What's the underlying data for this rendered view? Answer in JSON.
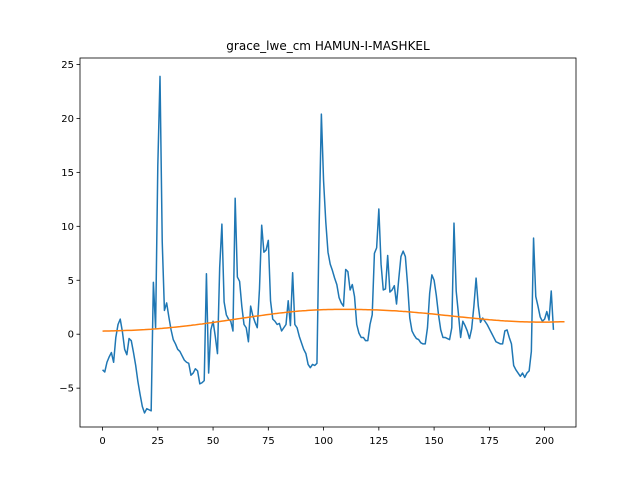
{
  "chart_data": {
    "type": "line",
    "title": "grace_lwe_cm HAMUN-I-MASHKEL",
    "xlabel": "",
    "ylabel": "",
    "xlim": [
      -10.2,
      214.2
    ],
    "ylim": [
      -8.6,
      25.6
    ],
    "x_ticks": [
      0,
      25,
      50,
      75,
      100,
      125,
      150,
      175,
      200
    ],
    "y_ticks": [
      -5,
      0,
      5,
      10,
      15,
      20,
      25
    ],
    "grid": false,
    "legend": "none",
    "series": [
      {
        "color": "#1f77b4",
        "values": [
          -3.3,
          -3.5,
          -2.6,
          -2.1,
          -1.7,
          -2.6,
          -0.3,
          0.9,
          1.4,
          0.2,
          -1.4,
          -1.9,
          -0.4,
          -0.6,
          -1.7,
          -2.9,
          -4.4,
          -5.6,
          -6.7,
          -7.3,
          -6.9,
          -7.0,
          -7.1,
          4.8,
          0.6,
          15.6,
          23.9,
          8.6,
          2.2,
          2.9,
          1.6,
          0.4,
          -0.5,
          -0.9,
          -1.4,
          -1.6,
          -2.0,
          -2.4,
          -2.6,
          -2.7,
          -3.8,
          -3.6,
          -3.2,
          -3.4,
          -4.6,
          -4.5,
          -4.3,
          5.6,
          -3.6,
          0.4,
          1.2,
          -0.2,
          -1.8,
          6.2,
          10.2,
          3.0,
          1.8,
          1.4,
          1.2,
          0.3,
          12.6,
          5.3,
          4.9,
          2.6,
          0.9,
          0.6,
          -0.7,
          2.6,
          1.7,
          1.1,
          0.6,
          4.2,
          10.1,
          7.6,
          7.8,
          8.7,
          3.1,
          1.4,
          1.2,
          0.9,
          1.0,
          0.3,
          0.6,
          0.9,
          3.1,
          0.8,
          5.7,
          0.9,
          0.6,
          -0.2,
          -0.8,
          -1.4,
          -1.8,
          -2.8,
          -3.1,
          -2.8,
          -2.9,
          -2.7,
          10.1,
          20.4,
          14.2,
          10.4,
          7.6,
          6.5,
          5.9,
          5.2,
          4.6,
          3.4,
          2.9,
          2.6,
          6.0,
          5.8,
          4.1,
          4.6,
          3.5,
          0.9,
          0.1,
          -0.3,
          -0.3,
          -0.6,
          -0.6,
          0.9,
          1.8,
          7.5,
          8.0,
          11.6,
          6.5,
          4.1,
          4.2,
          7.3,
          3.9,
          4.1,
          4.5,
          2.8,
          5.1,
          7.2,
          7.7,
          7.2,
          4.6,
          1.5,
          0.3,
          -0.1,
          -0.4,
          -0.5,
          -0.8,
          -0.9,
          -0.9,
          0.6,
          3.8,
          5.5,
          5.0,
          3.6,
          1.8,
          0.4,
          -0.3,
          -0.3,
          -0.4,
          -0.5,
          0.6,
          10.3,
          4.0,
          1.9,
          -0.3,
          1.2,
          0.8,
          0.3,
          -0.4,
          0.5,
          2.6,
          5.2,
          2.6,
          1.1,
          1.5,
          1.2,
          0.9,
          0.5,
          0.1,
          -0.3,
          -0.7,
          -0.8,
          -0.9,
          -0.9,
          0.3,
          0.4,
          -0.3,
          -0.9,
          -2.9,
          -3.3,
          -3.6,
          -3.9,
          -3.6,
          -4.0,
          -3.6,
          -3.4,
          -1.6,
          8.9,
          3.5,
          2.6,
          1.6,
          1.2,
          1.4,
          2.1,
          1.3,
          4.0,
          0.4
        ]
      },
      {
        "color": "#ff7f0e",
        "values": [
          0.29,
          0.3,
          0.3,
          0.3,
          0.31,
          0.31,
          0.32,
          0.32,
          0.33,
          0.33,
          0.34,
          0.35,
          0.35,
          0.36,
          0.37,
          0.38,
          0.39,
          0.4,
          0.41,
          0.42,
          0.44,
          0.45,
          0.46,
          0.48,
          0.49,
          0.51,
          0.53,
          0.54,
          0.56,
          0.58,
          0.6,
          0.62,
          0.64,
          0.66,
          0.68,
          0.7,
          0.73,
          0.75,
          0.77,
          0.8,
          0.82,
          0.85,
          0.87,
          0.9,
          0.93,
          0.95,
          0.98,
          1.01,
          1.04,
          1.06,
          1.09,
          1.12,
          1.15,
          1.18,
          1.21,
          1.24,
          1.27,
          1.3,
          1.33,
          1.36,
          1.39,
          1.42,
          1.45,
          1.48,
          1.51,
          1.54,
          1.57,
          1.6,
          1.63,
          1.66,
          1.69,
          1.71,
          1.74,
          1.77,
          1.8,
          1.83,
          1.85,
          1.88,
          1.91,
          1.93,
          1.96,
          1.98,
          2.0,
          2.03,
          2.05,
          2.07,
          2.09,
          2.11,
          2.13,
          2.15,
          2.16,
          2.18,
          2.19,
          2.21,
          2.22,
          2.23,
          2.24,
          2.25,
          2.26,
          2.27,
          2.28,
          2.28,
          2.29,
          2.29,
          2.29,
          2.3,
          2.3,
          2.3,
          2.3,
          2.3,
          2.3,
          2.3,
          2.3,
          2.3,
          2.3,
          2.29,
          2.29,
          2.29,
          2.28,
          2.28,
          2.27,
          2.27,
          2.26,
          2.26,
          2.25,
          2.24,
          2.23,
          2.22,
          2.21,
          2.2,
          2.19,
          2.18,
          2.17,
          2.16,
          2.14,
          2.13,
          2.11,
          2.1,
          2.08,
          2.07,
          2.05,
          2.03,
          2.01,
          1.99,
          1.98,
          1.96,
          1.94,
          1.92,
          1.9,
          1.88,
          1.86,
          1.84,
          1.82,
          1.79,
          1.77,
          1.75,
          1.73,
          1.71,
          1.69,
          1.66,
          1.64,
          1.62,
          1.6,
          1.58,
          1.56,
          1.54,
          1.52,
          1.5,
          1.48,
          1.46,
          1.44,
          1.42,
          1.4,
          1.38,
          1.36,
          1.34,
          1.33,
          1.31,
          1.29,
          1.28,
          1.26,
          1.25,
          1.23,
          1.22,
          1.21,
          1.2,
          1.19,
          1.18,
          1.17,
          1.16,
          1.15,
          1.14,
          1.14,
          1.13,
          1.13,
          1.13,
          1.12,
          1.12,
          1.12,
          1.12,
          1.12,
          1.12,
          1.12,
          1.13,
          1.13,
          1.14,
          1.14,
          1.15,
          1.16,
          1.16
        ]
      }
    ]
  }
}
